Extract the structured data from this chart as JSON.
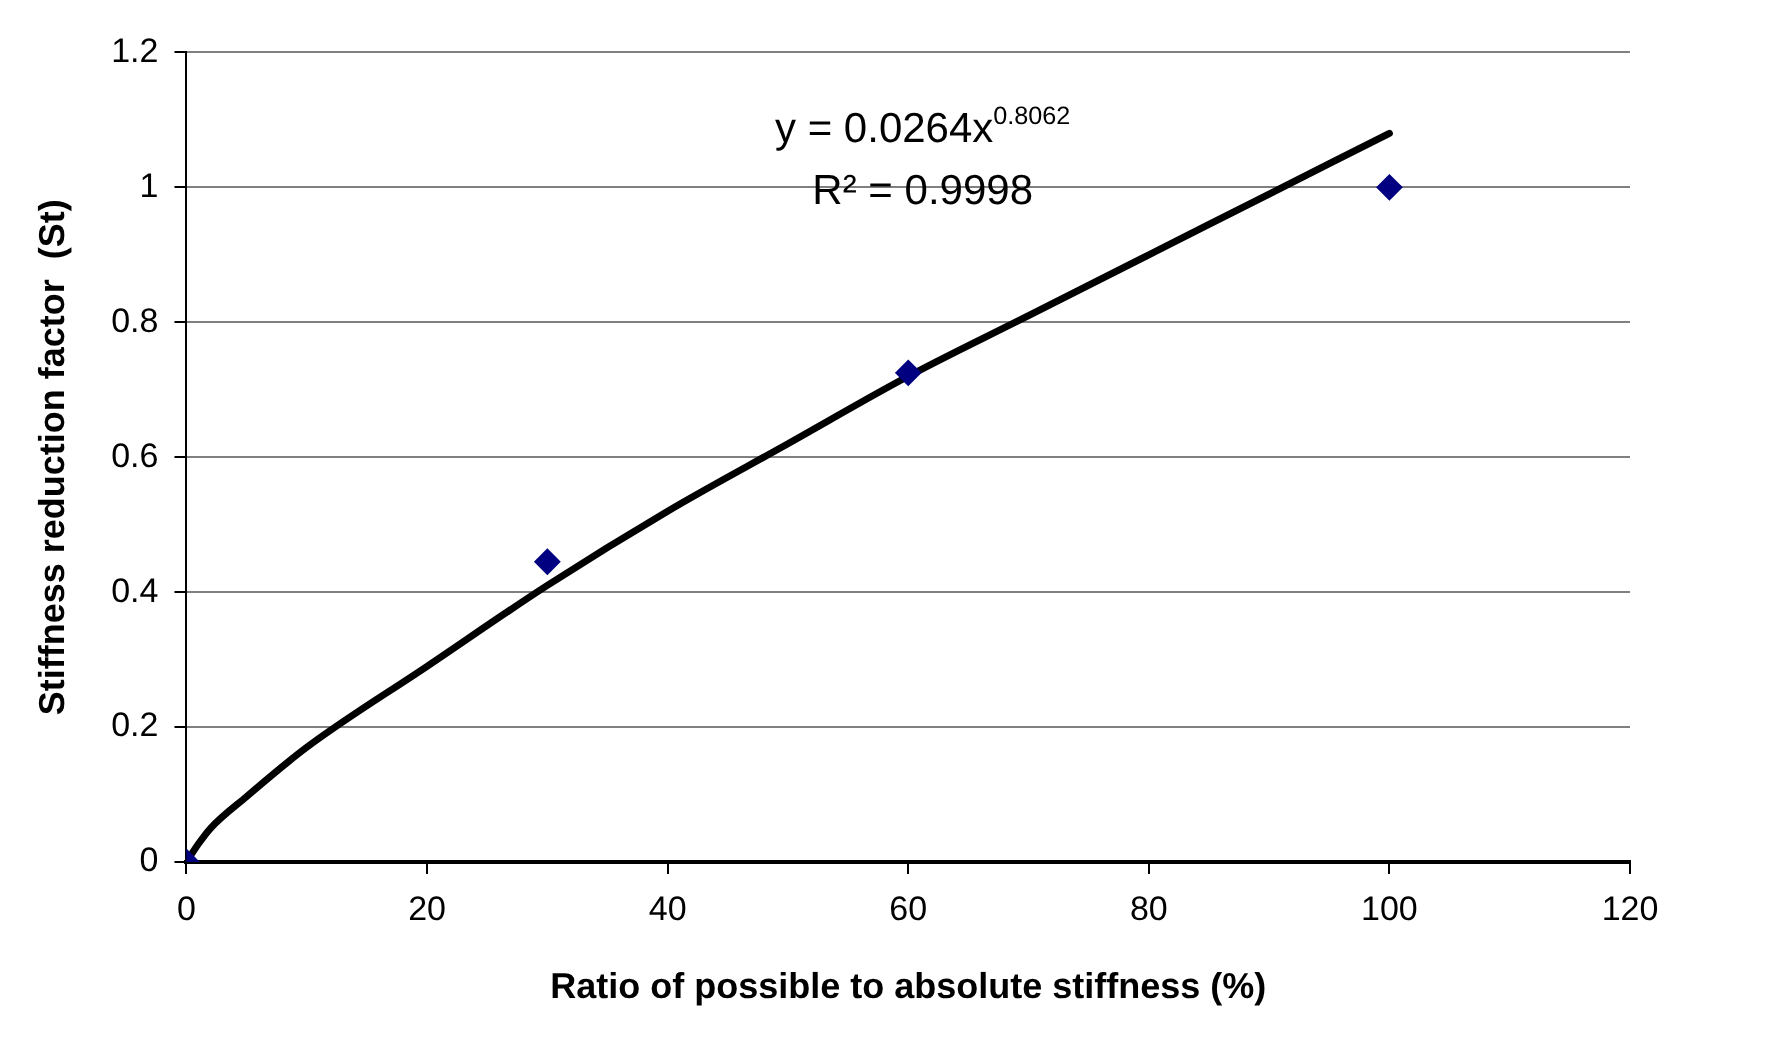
{
  "chart_data": {
    "type": "scatter",
    "xlabel": "Ratio of possible to absolute stiffness (%)",
    "ylabel": "Stiffness reduction factor  (St)",
    "annotations": [
      "y = 0.0264x$^{0.8062}$",
      "R² = 0.9998"
    ],
    "series": [
      {
        "color": "#000080",
        "marker": "diamond",
        "x": [
          0,
          30,
          60,
          100
        ],
        "values": [
          0,
          0.445,
          0.725,
          1.0
        ]
      },
      {
        "type": "line",
        "color": "#000000",
        "marker": "none",
        "x": [
          0,
          1,
          2,
          5,
          10,
          20,
          30,
          40,
          50,
          60,
          70,
          80,
          90,
          100
        ],
        "values": [
          0,
          0.027,
          0.05,
          0.097,
          0.17,
          0.29,
          0.41,
          0.52,
          0.62,
          0.72,
          0.81,
          0.9,
          0.99,
          1.08
        ]
      }
    ],
    "xlim": [
      0,
      120
    ],
    "xticks": [
      0,
      20,
      40,
      60,
      80,
      100,
      120
    ],
    "ylim": [
      0,
      1.2
    ],
    "yticks": [
      0,
      0.2,
      0.4,
      0.6,
      0.8,
      1,
      1.2
    ],
    "grid": "y",
    "legend": false
  }
}
